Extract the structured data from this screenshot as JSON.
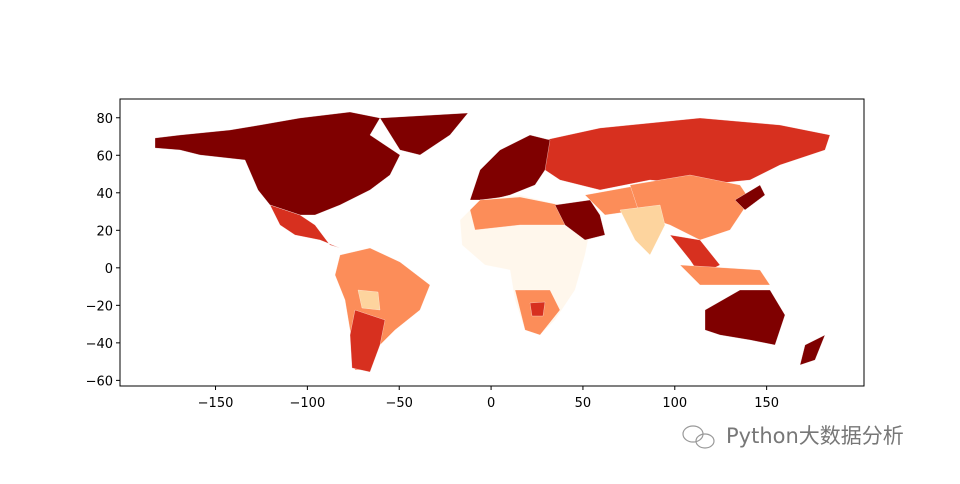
{
  "chart_data": {
    "type": "map",
    "xlim": [
      -202,
      203
    ],
    "ylim": [
      -63,
      90
    ],
    "xticks": [
      {
        "value": -150,
        "label": "−150"
      },
      {
        "value": -100,
        "label": "−100"
      },
      {
        "value": -50,
        "label": "−50"
      },
      0,
      50,
      100,
      150
    ],
    "yticks": [
      {
        "value": -60,
        "label": "−60"
      },
      {
        "value": -40,
        "label": "−40"
      },
      {
        "value": -20,
        "label": "−20"
      },
      0,
      20,
      40,
      60,
      80
    ]
  },
  "watermark": "Python大数据分析"
}
